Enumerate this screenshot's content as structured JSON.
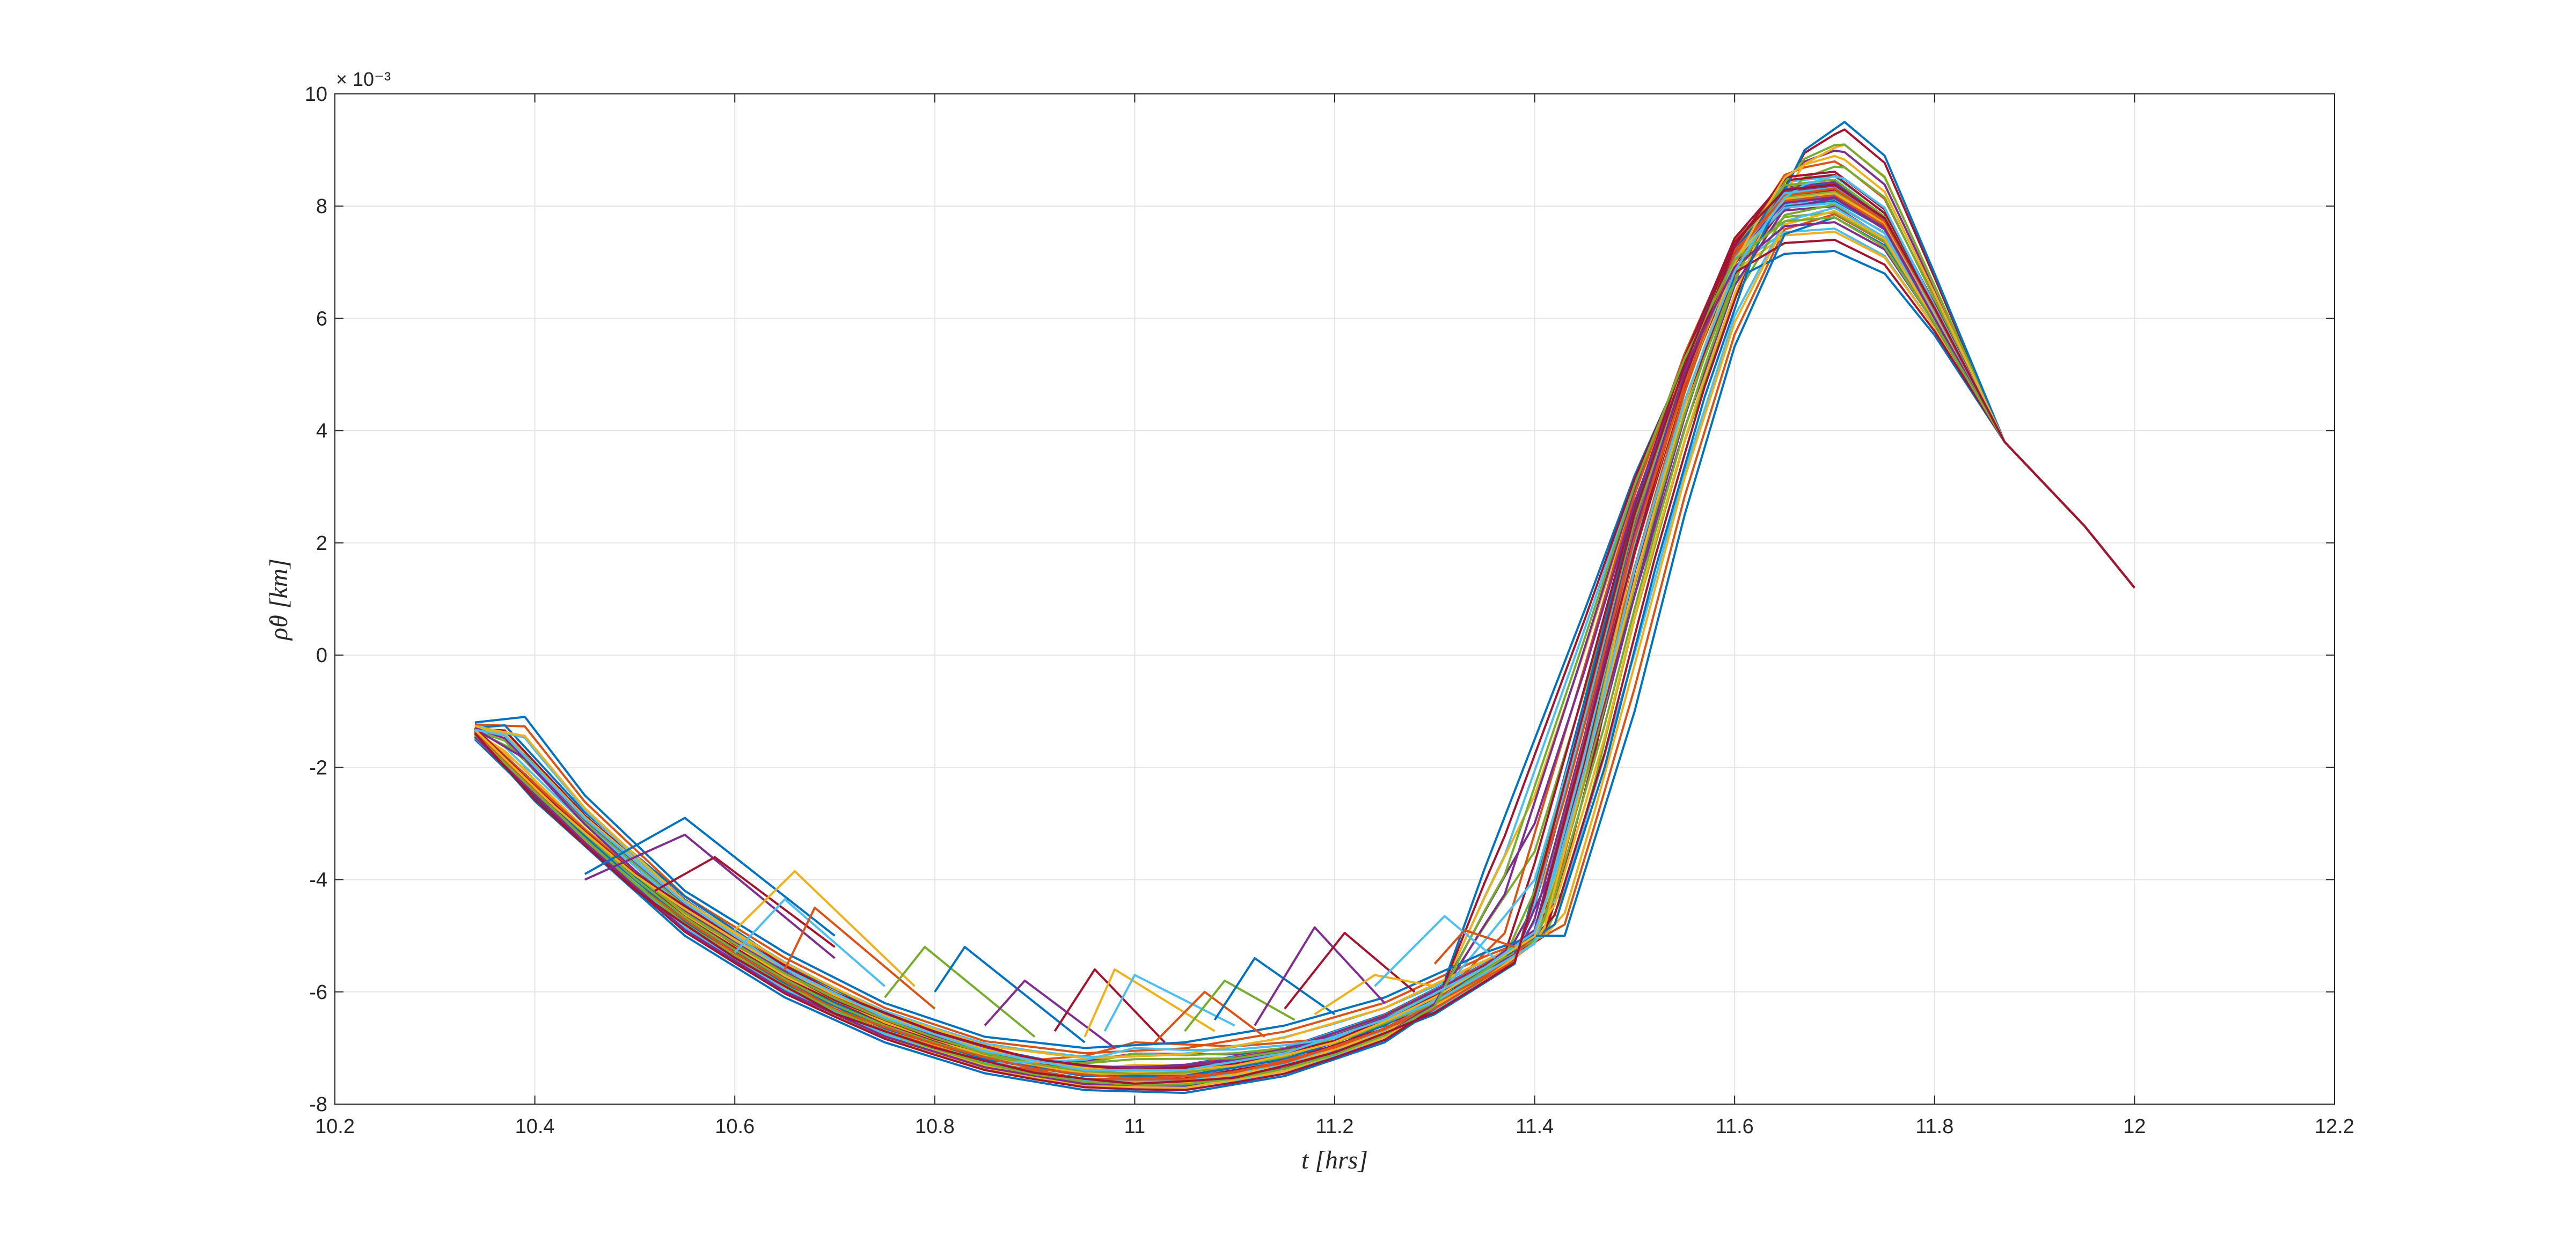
{
  "chart_data": {
    "type": "line",
    "title": "",
    "xlabel": "t [hrs]",
    "ylabel": "ρ̇θ [km]",
    "y_exponent_label": "× 10⁻³",
    "y_scale_factor": 0.001,
    "xlim": [
      10.2,
      12.2
    ],
    "ylim": [
      -8,
      10
    ],
    "xticks": [
      "10.2",
      "10.4",
      "10.6",
      "10.8",
      "11",
      "11.2",
      "11.4",
      "11.6",
      "11.8",
      "12",
      "12.2"
    ],
    "yticks": [
      "-8",
      "-6",
      "-4",
      "-2",
      "0",
      "2",
      "4",
      "6",
      "8",
      "10"
    ],
    "grid": true,
    "legend": "none",
    "series_colors": [
      "#0072BD",
      "#D95319",
      "#EDB120",
      "#7E2F8E",
      "#77AC30",
      "#4DBEEE",
      "#A2142F"
    ],
    "series_count": 56,
    "series": [
      {
        "x": [
          10.34,
          10.45,
          10.55,
          10.65,
          10.75,
          10.85,
          10.95,
          11.05,
          11.15,
          11.25,
          11.35,
          11.4,
          11.45,
          11.5,
          11.55,
          11.6,
          11.65,
          11.7,
          11.75,
          11.8,
          11.87,
          11.95,
          12.0
        ],
        "y": [
          -1.3,
          -3.1,
          -4.6,
          -5.7,
          -6.5,
          -7.05,
          -7.35,
          -7.3,
          -7.0,
          -6.4,
          -5.5,
          -4.9,
          -1.5,
          2.3,
          5.1,
          7.2,
          8.0,
          8.1,
          7.6,
          6.0,
          3.8,
          2.3,
          1.2
        ]
      },
      {
        "x": [
          10.34,
          10.39,
          10.45,
          10.55,
          10.65,
          10.75,
          10.85,
          10.95,
          11.05,
          11.15,
          11.25,
          11.35,
          11.4,
          11.43,
          11.5,
          11.55,
          11.6,
          11.65,
          11.7,
          11.75,
          11.8,
          11.87,
          11.95,
          12.0
        ],
        "y": [
          -1.2,
          -1.1,
          -2.5,
          -4.2,
          -5.3,
          -6.2,
          -6.8,
          -7.0,
          -6.9,
          -6.6,
          -6.1,
          -5.3,
          -5.0,
          -5.0,
          -1.0,
          2.5,
          5.5,
          7.5,
          7.8,
          7.3,
          5.9,
          3.8,
          2.3,
          1.2
        ]
      },
      {
        "x": [
          10.34,
          10.4,
          10.5,
          10.6,
          10.7,
          10.8,
          10.9,
          11.0,
          11.1,
          11.2,
          11.3,
          11.38,
          11.45,
          11.5,
          11.55,
          11.6,
          11.65,
          11.7,
          11.75,
          11.8,
          11.87,
          11.95,
          12.0
        ],
        "y": [
          -1.4,
          -2.6,
          -4.2,
          -5.4,
          -6.4,
          -7.0,
          -7.45,
          -7.65,
          -7.55,
          -7.1,
          -6.4,
          -5.5,
          -0.8,
          2.6,
          5.2,
          7.4,
          8.3,
          8.4,
          7.8,
          6.2,
          3.8,
          2.3,
          1.2
        ]
      },
      {
        "x": [
          10.34,
          10.42,
          10.5,
          10.6,
          10.7,
          10.8,
          10.9,
          11.0,
          11.1,
          11.2,
          11.3,
          11.4,
          11.45,
          11.5,
          11.55,
          11.6,
          11.65,
          11.7,
          11.75,
          11.8,
          11.87,
          11.95,
          12.0
        ],
        "y": [
          -1.3,
          -2.7,
          -3.9,
          -5.0,
          -6.0,
          -6.7,
          -7.2,
          -7.4,
          -7.3,
          -6.9,
          -6.1,
          -5.0,
          -1.6,
          1.8,
          4.9,
          7.3,
          8.6,
          8.7,
          8.0,
          6.3,
          3.8,
          2.3,
          1.2
        ]
      },
      {
        "x": [
          10.34,
          10.45,
          10.55,
          10.65,
          10.75,
          10.85,
          10.95,
          11.05,
          11.15,
          11.25,
          11.3,
          11.35,
          11.4,
          11.45,
          11.5,
          11.55,
          11.6,
          11.65,
          11.7,
          11.75,
          11.8,
          11.87,
          11.95,
          12.0
        ],
        "y": [
          -1.5,
          -3.4,
          -5.0,
          -6.1,
          -6.9,
          -7.45,
          -7.75,
          -7.8,
          -7.5,
          -6.9,
          -6.3,
          -3.8,
          -1.5,
          0.8,
          3.2,
          5.2,
          6.7,
          7.15,
          7.2,
          6.8,
          5.7,
          3.8,
          2.3,
          1.2
        ]
      },
      {
        "x": [
          10.34,
          10.4,
          10.5,
          10.6,
          10.7,
          10.8,
          10.9,
          11.0,
          11.1,
          11.2,
          11.3,
          11.37,
          11.44,
          11.5,
          11.55,
          11.6,
          11.65,
          11.7,
          11.75,
          11.8,
          11.87,
          11.95,
          12.0
        ],
        "y": [
          -1.3,
          -2.3,
          -3.9,
          -5.1,
          -6.1,
          -6.8,
          -7.3,
          -7.5,
          -7.4,
          -7.0,
          -6.2,
          -5.3,
          -1.0,
          2.8,
          5.4,
          7.5,
          8.5,
          8.6,
          7.9,
          6.2,
          3.8,
          2.3,
          1.2
        ]
      },
      {
        "x": [
          10.34,
          10.45,
          10.55,
          10.65,
          10.75,
          10.85,
          10.95,
          11.05,
          11.15,
          11.25,
          11.35,
          11.42,
          11.47,
          11.52,
          11.57,
          11.62,
          11.67,
          11.71,
          11.75,
          11.8,
          11.87,
          11.95,
          12.0
        ],
        "y": [
          -1.4,
          -3.2,
          -4.7,
          -5.8,
          -6.6,
          -7.2,
          -7.5,
          -7.5,
          -7.2,
          -6.6,
          -5.6,
          -4.8,
          -2.0,
          1.5,
          4.6,
          7.2,
          9.0,
          9.5,
          8.9,
          6.8,
          3.8,
          2.3,
          1.2
        ]
      },
      {
        "x": [
          10.34,
          10.45,
          10.55,
          10.65,
          10.75,
          10.85,
          10.95,
          11.05,
          11.15,
          11.25,
          11.35,
          11.4,
          11.45,
          11.5,
          11.55,
          11.6,
          11.65,
          11.7,
          11.75,
          11.8,
          11.87,
          11.95,
          12.0
        ],
        "y": [
          -1.35,
          -3.3,
          -4.8,
          -5.9,
          -6.7,
          -7.25,
          -7.55,
          -7.55,
          -7.25,
          -6.65,
          -5.7,
          -5.1,
          -1.9,
          2.0,
          4.9,
          7.1,
          8.2,
          8.3,
          7.7,
          6.1,
          3.8,
          2.3,
          1.2
        ]
      },
      {
        "x": [
          10.34,
          10.45,
          10.55,
          10.65,
          10.75,
          10.85,
          10.95,
          11.05,
          11.15,
          11.25,
          11.35,
          11.41,
          11.46,
          11.5,
          11.55,
          11.6,
          11.65,
          11.7,
          11.75,
          11.8,
          11.87,
          11.95,
          12.0
        ],
        "y": [
          -1.45,
          -3.3,
          -4.85,
          -5.95,
          -6.8,
          -7.35,
          -7.65,
          -7.65,
          -7.35,
          -6.75,
          -5.8,
          -5.0,
          -1.5,
          1.9,
          4.8,
          7.0,
          8.1,
          8.2,
          7.7,
          6.1,
          3.8,
          2.3,
          1.2
        ]
      },
      {
        "x": [
          10.34,
          10.37,
          10.45,
          10.55,
          10.65,
          10.75,
          10.85,
          10.95,
          11.05,
          11.15,
          11.25,
          11.35,
          11.4,
          11.45,
          11.5,
          11.55,
          11.6,
          11.65,
          11.7,
          11.75,
          11.8,
          11.87,
          11.95,
          12.0
        ],
        "y": [
          -1.3,
          -1.25,
          -2.8,
          -4.3,
          -5.5,
          -6.4,
          -7.0,
          -7.35,
          -7.35,
          -7.05,
          -6.45,
          -5.55,
          -4.9,
          -1.6,
          2.1,
          5.0,
          7.1,
          8.1,
          8.2,
          7.6,
          6.0,
          3.8,
          2.3,
          1.2
        ]
      },
      {
        "x": [
          10.34,
          10.55,
          10.65,
          10.75,
          10.85,
          10.95,
          11.0,
          11.1,
          11.2,
          11.3,
          11.4,
          11.45,
          11.5,
          11.55,
          11.6,
          11.65,
          11.7,
          11.75,
          11.8,
          11.87,
          11.95,
          12.0
        ],
        "y": [
          -1.5,
          -4.9,
          -6.0,
          -6.8,
          -7.3,
          -7.1,
          -6.8,
          -6.9,
          -6.8,
          -6.2,
          -5.2,
          -1.8,
          1.9,
          4.8,
          7.0,
          8.2,
          8.3,
          7.7,
          6.1,
          3.8,
          2.3,
          1.2
        ]
      },
      {
        "x": [
          10.34,
          10.45,
          10.55,
          10.65,
          10.75,
          10.85,
          10.95,
          11.05,
          11.15,
          11.25,
          11.35,
          11.4,
          11.45,
          11.5,
          11.55,
          11.6,
          11.65,
          11.7,
          11.75,
          11.8,
          11.87,
          11.95,
          12.0
        ],
        "y": [
          -1.4,
          -3.25,
          -4.75,
          -5.85,
          -6.65,
          -7.2,
          -7.5,
          -7.5,
          -7.2,
          -6.6,
          -5.6,
          -5.0,
          -1.7,
          2.1,
          5.0,
          7.2,
          8.3,
          8.4,
          7.8,
          6.2,
          3.8,
          2.3,
          1.2
        ]
      }
    ],
    "kinked_segments": [
      {
        "x": [
          10.45,
          10.55,
          10.7
        ],
        "y": [
          -3.9,
          -2.9,
          -5.0
        ]
      },
      {
        "x": [
          10.45,
          10.55,
          10.7
        ],
        "y": [
          -4.0,
          -3.2,
          -5.4
        ]
      },
      {
        "x": [
          10.52,
          10.58,
          10.7
        ],
        "y": [
          -4.2,
          -3.6,
          -5.2
        ]
      },
      {
        "x": [
          10.6,
          10.66,
          10.78
        ],
        "y": [
          -4.9,
          -3.85,
          -5.9
        ]
      },
      {
        "x": [
          10.6,
          10.65,
          10.75
        ],
        "y": [
          -5.3,
          -4.35,
          -5.9
        ]
      },
      {
        "x": [
          10.65,
          10.68,
          10.8
        ],
        "y": [
          -5.6,
          -4.5,
          -6.3
        ]
      },
      {
        "x": [
          10.75,
          10.79,
          10.9
        ],
        "y": [
          -6.1,
          -5.2,
          -6.8
        ]
      },
      {
        "x": [
          10.8,
          10.83,
          10.95
        ],
        "y": [
          -6.0,
          -5.2,
          -6.9
        ]
      },
      {
        "x": [
          10.85,
          10.89,
          10.98
        ],
        "y": [
          -6.6,
          -5.8,
          -7.0
        ]
      },
      {
        "x": [
          10.92,
          10.96,
          11.03
        ],
        "y": [
          -6.7,
          -5.6,
          -6.9
        ]
      },
      {
        "x": [
          10.95,
          10.98,
          11.08
        ],
        "y": [
          -6.8,
          -5.6,
          -6.7
        ]
      },
      {
        "x": [
          10.97,
          11.0,
          11.1
        ],
        "y": [
          -6.7,
          -5.7,
          -6.6
        ]
      },
      {
        "x": [
          11.02,
          11.07,
          11.13
        ],
        "y": [
          -6.9,
          -6.0,
          -6.8
        ]
      },
      {
        "x": [
          11.05,
          11.09,
          11.16
        ],
        "y": [
          -6.7,
          -5.8,
          -6.5
        ]
      },
      {
        "x": [
          11.08,
          11.12,
          11.2
        ],
        "y": [
          -6.5,
          -5.4,
          -6.4
        ]
      },
      {
        "x": [
          11.12,
          11.18,
          11.25
        ],
        "y": [
          -6.6,
          -4.85,
          -6.2
        ]
      },
      {
        "x": [
          11.15,
          11.21,
          11.28
        ],
        "y": [
          -6.3,
          -4.95,
          -6.0
        ]
      },
      {
        "x": [
          11.18,
          11.24,
          11.3
        ],
        "y": [
          -6.4,
          -5.7,
          -5.9
        ]
      },
      {
        "x": [
          11.24,
          11.31,
          11.36
        ],
        "y": [
          -5.9,
          -4.65,
          -5.4
        ]
      },
      {
        "x": [
          11.3,
          11.33,
          11.38
        ],
        "y": [
          -5.5,
          -4.9,
          -5.2
        ]
      }
    ]
  }
}
